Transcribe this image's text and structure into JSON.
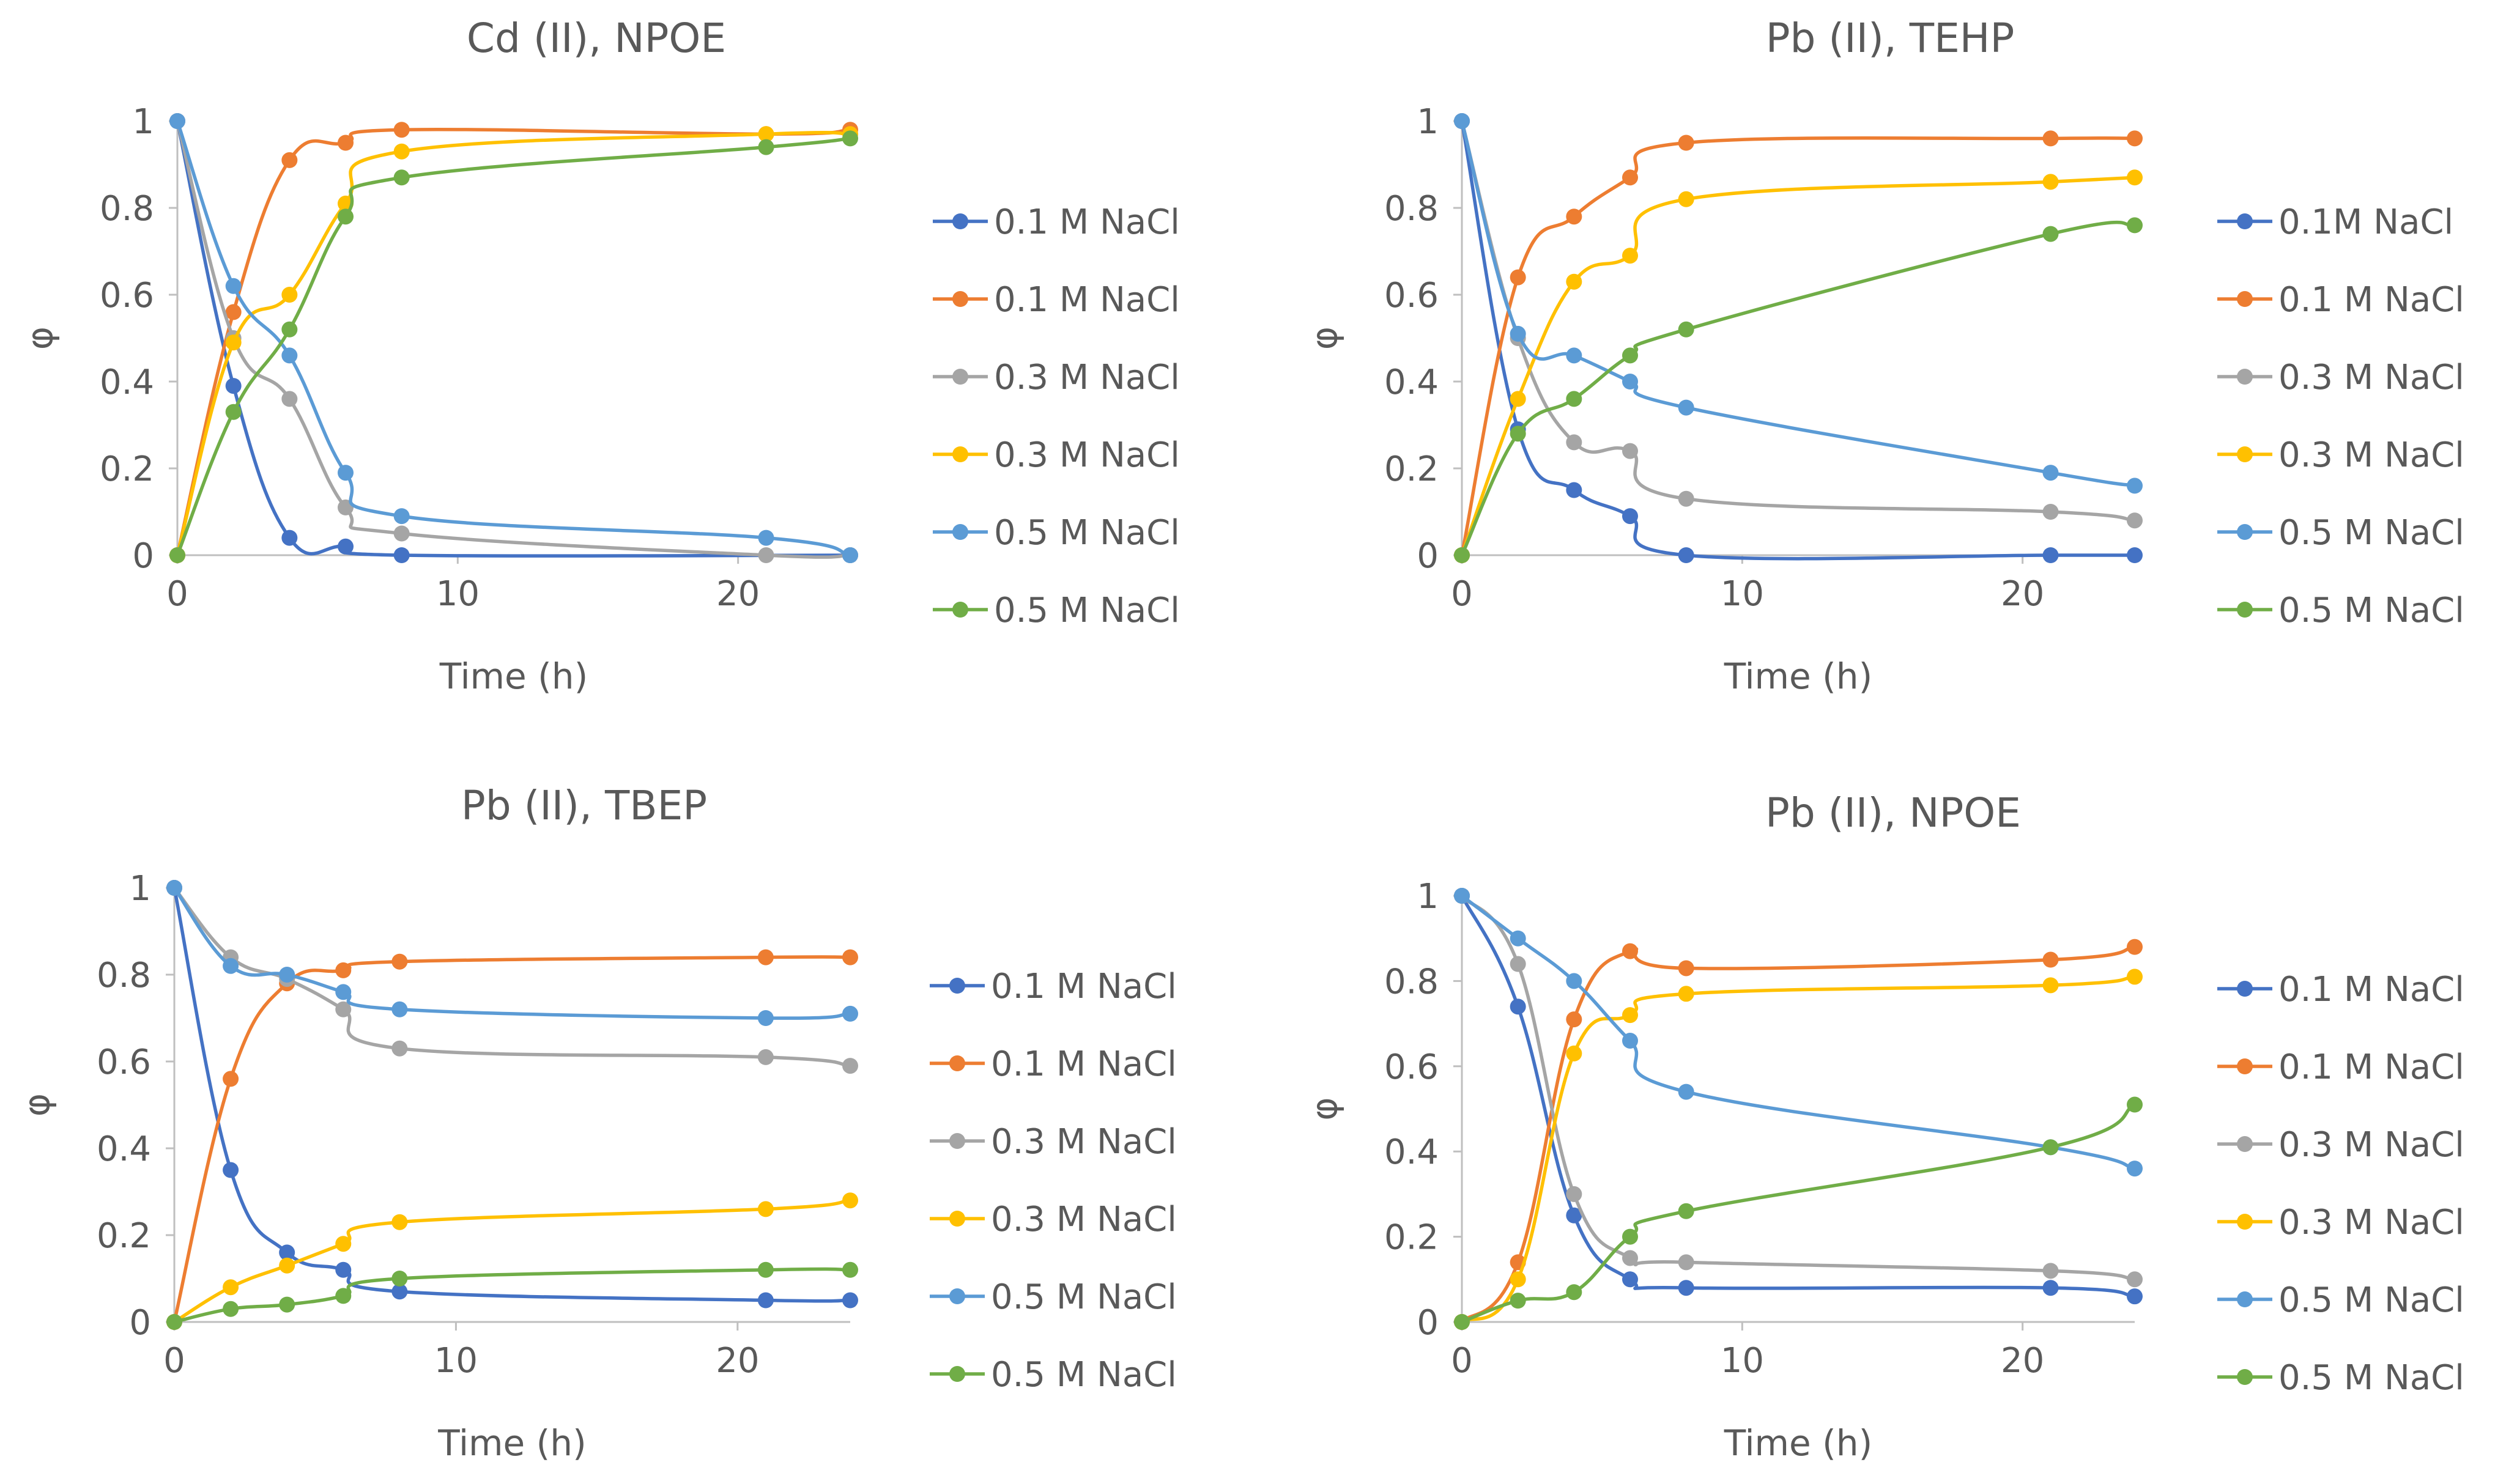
{
  "colors": {
    "blue_dark": "#4472C4",
    "orange": "#ED7D31",
    "gray": "#A5A5A5",
    "yellow": "#FFC000",
    "blue_light": "#5B9BD5",
    "green": "#70AD47"
  },
  "chart_data": [
    {
      "type": "line",
      "title": "Cd (II), NPOE",
      "xlabel": "Time (h)",
      "ylabel": "φ",
      "xlim": [
        0,
        24
      ],
      "ylim": [
        0,
        1
      ],
      "xticks": [
        "0",
        "10",
        "20"
      ],
      "yticks": [
        "0",
        "0.2",
        "0.4",
        "0.6",
        "0.8",
        "1"
      ],
      "legend_position": "right",
      "series": [
        {
          "name": "0.1 M NaCl",
          "color": "#4472C4",
          "x": [
            0,
            2,
            4,
            6,
            8,
            24
          ],
          "y": [
            1,
            0.39,
            0.04,
            0.02,
            0,
            0
          ]
        },
        {
          "name": "0.1 M NaCl",
          "color": "#ED7D31",
          "x": [
            0,
            2,
            4,
            6,
            8,
            21,
            24
          ],
          "y": [
            0,
            0.56,
            0.91,
            0.95,
            0.98,
            0.97,
            0.98
          ]
        },
        {
          "name": "0.3 M NaCl",
          "color": "#A5A5A5",
          "x": [
            0,
            2,
            4,
            6,
            8,
            21,
            24
          ],
          "y": [
            1,
            0.5,
            0.36,
            0.11,
            0.05,
            0,
            0
          ]
        },
        {
          "name": "0.3 M NaCl",
          "color": "#FFC000",
          "x": [
            0,
            2,
            4,
            6,
            8,
            21,
            24
          ],
          "y": [
            0,
            0.49,
            0.6,
            0.81,
            0.93,
            0.97,
            0.97
          ]
        },
        {
          "name": "0.5 M NaCl",
          "color": "#5B9BD5",
          "x": [
            0,
            2,
            4,
            6,
            8,
            21,
            24
          ],
          "y": [
            1,
            0.62,
            0.46,
            0.19,
            0.09,
            0.04,
            0
          ]
        },
        {
          "name": "0.5 M NaCl",
          "color": "#70AD47",
          "x": [
            0,
            2,
            4,
            6,
            8,
            21,
            24
          ],
          "y": [
            0,
            0.33,
            0.52,
            0.78,
            0.87,
            0.94,
            0.96
          ]
        }
      ]
    },
    {
      "type": "line",
      "title": "Pb (II), TEHP",
      "xlabel": "Time (h)",
      "ylabel": "φ",
      "xlim": [
        0,
        24
      ],
      "ylim": [
        0,
        1
      ],
      "xticks": [
        "0",
        "10",
        "20"
      ],
      "yticks": [
        "0",
        "0.2",
        "0.4",
        "0.6",
        "0.8",
        "1"
      ],
      "legend_position": "right",
      "series": [
        {
          "name": "0.1M NaCl",
          "color": "#4472C4",
          "x": [
            0,
            2,
            4,
            6,
            8,
            21,
            24
          ],
          "y": [
            1,
            0.29,
            0.15,
            0.09,
            0,
            0,
            0
          ]
        },
        {
          "name": "0.1 M NaCl",
          "color": "#ED7D31",
          "x": [
            0,
            2,
            4,
            6,
            8,
            21,
            24
          ],
          "y": [
            0,
            0.64,
            0.78,
            0.87,
            0.95,
            0.96,
            0.96
          ]
        },
        {
          "name": "0.3 M NaCl",
          "color": "#A5A5A5",
          "x": [
            0,
            2,
            4,
            6,
            8,
            21,
            24
          ],
          "y": [
            1,
            0.5,
            0.26,
            0.24,
            0.13,
            0.1,
            0.08
          ]
        },
        {
          "name": "0.3 M NaCl",
          "color": "#FFC000",
          "x": [
            0,
            2,
            4,
            6,
            8,
            21,
            24
          ],
          "y": [
            0,
            0.36,
            0.63,
            0.69,
            0.82,
            0.86,
            0.87
          ]
        },
        {
          "name": "0.5 M NaCl",
          "color": "#5B9BD5",
          "x": [
            0,
            2,
            4,
            6,
            8,
            21,
            24
          ],
          "y": [
            1,
            0.51,
            0.46,
            0.4,
            0.34,
            0.19,
            0.16
          ]
        },
        {
          "name": "0.5 M NaCl",
          "color": "#70AD47",
          "x": [
            0,
            2,
            4,
            6,
            8,
            21,
            24
          ],
          "y": [
            0,
            0.28,
            0.36,
            0.46,
            0.52,
            0.74,
            0.76
          ]
        }
      ]
    },
    {
      "type": "line",
      "title": "Pb (II), TBEP",
      "xlabel": "Time (h)",
      "ylabel": "φ",
      "xlim": [
        0,
        24
      ],
      "ylim": [
        0,
        1
      ],
      "xticks": [
        "0",
        "10",
        "20"
      ],
      "yticks": [
        "0",
        "0.2",
        "0.4",
        "0.6",
        "0.8",
        "1"
      ],
      "legend_position": "right",
      "series": [
        {
          "name": "0.1 M NaCl",
          "color": "#4472C4",
          "x": [
            0,
            2,
            4,
            6,
            8,
            21,
            24
          ],
          "y": [
            1,
            0.35,
            0.16,
            0.12,
            0.07,
            0.05,
            0.05
          ]
        },
        {
          "name": "0.1 M NaCl",
          "color": "#ED7D31",
          "x": [
            0,
            2,
            4,
            6,
            8,
            21,
            24
          ],
          "y": [
            0,
            0.56,
            0.78,
            0.81,
            0.83,
            0.84,
            0.84
          ]
        },
        {
          "name": "0.3 M NaCl",
          "color": "#A5A5A5",
          "x": [
            0,
            2,
            4,
            6,
            8,
            21,
            24
          ],
          "y": [
            1,
            0.84,
            0.79,
            0.72,
            0.63,
            0.61,
            0.59
          ]
        },
        {
          "name": "0.3 M NaCl",
          "color": "#FFC000",
          "x": [
            0,
            2,
            4,
            6,
            8,
            21,
            24
          ],
          "y": [
            0,
            0.08,
            0.13,
            0.18,
            0.23,
            0.26,
            0.28
          ]
        },
        {
          "name": "0.5 M NaCl",
          "color": "#5B9BD5",
          "x": [
            0,
            2,
            4,
            6,
            8,
            21,
            24
          ],
          "y": [
            1,
            0.82,
            0.8,
            0.76,
            0.72,
            0.7,
            0.71
          ]
        },
        {
          "name": "0.5 M NaCl",
          "color": "#70AD47",
          "x": [
            0,
            2,
            4,
            6,
            8,
            21,
            24
          ],
          "y": [
            0,
            0.03,
            0.04,
            0.06,
            0.1,
            0.12,
            0.12
          ]
        }
      ]
    },
    {
      "type": "line",
      "title": "Pb (II), NPOE",
      "xlabel": "Time (h)",
      "ylabel": "φ",
      "xlim": [
        0,
        24
      ],
      "ylim": [
        0,
        1
      ],
      "xticks": [
        "0",
        "10",
        "20"
      ],
      "yticks": [
        "0",
        "0.2",
        "0.4",
        "0.6",
        "0.8",
        "1"
      ],
      "legend_position": "right",
      "series": [
        {
          "name": "0.1 M NaCl",
          "color": "#4472C4",
          "x": [
            0,
            2,
            4,
            6,
            8,
            21,
            24
          ],
          "y": [
            1,
            0.74,
            0.25,
            0.1,
            0.08,
            0.08,
            0.06
          ]
        },
        {
          "name": "0.1 M NaCl",
          "color": "#ED7D31",
          "x": [
            0,
            2,
            4,
            6,
            8,
            21,
            24
          ],
          "y": [
            0,
            0.14,
            0.71,
            0.87,
            0.83,
            0.85,
            0.88
          ]
        },
        {
          "name": "0.3 M NaCl",
          "color": "#A5A5A5",
          "x": [
            0,
            2,
            4,
            6,
            8,
            21,
            24
          ],
          "y": [
            1,
            0.84,
            0.3,
            0.15,
            0.14,
            0.12,
            0.1
          ]
        },
        {
          "name": "0.3 M NaCl",
          "color": "#FFC000",
          "x": [
            0,
            2,
            4,
            6,
            8,
            21,
            24
          ],
          "y": [
            0,
            0.1,
            0.63,
            0.72,
            0.77,
            0.79,
            0.81
          ]
        },
        {
          "name": "0.5 M NaCl",
          "color": "#5B9BD5",
          "x": [
            0,
            2,
            4,
            6,
            8,
            21,
            24
          ],
          "y": [
            1,
            0.9,
            0.8,
            0.66,
            0.54,
            0.41,
            0.36
          ]
        },
        {
          "name": "0.5 M NaCl",
          "color": "#70AD47",
          "x": [
            0,
            2,
            4,
            6,
            8,
            21,
            24
          ],
          "y": [
            0,
            0.05,
            0.07,
            0.2,
            0.26,
            0.41,
            0.51
          ]
        }
      ]
    }
  ]
}
